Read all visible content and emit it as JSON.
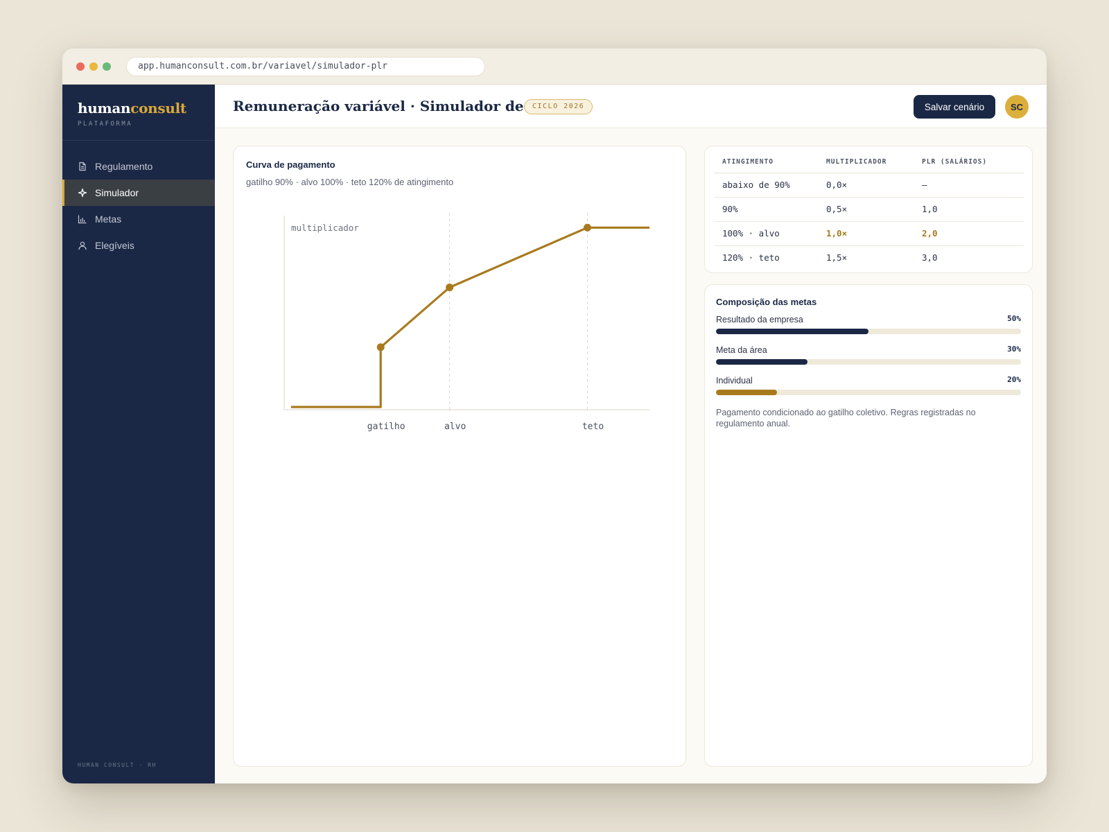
{
  "browser": {
    "url": "app.humanconsult.com.br/variavel/simulador-plr"
  },
  "brand": {
    "name_main": "human",
    "name_accent": "consult",
    "subtitle": "PLATAFORMA"
  },
  "sidebar": {
    "items": [
      {
        "label": "Regulamento",
        "icon": "document-icon",
        "active": false
      },
      {
        "label": "Simulador",
        "icon": "sparkle-icon",
        "active": true
      },
      {
        "label": "Metas",
        "icon": "bar-chart-icon",
        "active": false
      },
      {
        "label": "Elegíveis",
        "icon": "user-icon",
        "active": false
      }
    ],
    "footer": "HUMAN CONSULT · RH"
  },
  "header": {
    "title": "Remuneração variável · Simulador de PLR",
    "badge": "CICLO 2026",
    "save_label": "Salvar cenário",
    "avatar_initials": "SC"
  },
  "chart_card": {
    "title": "Curva de pagamento",
    "subtitle": "gatilho 90% · alvo 100% · teto 120% de atingimento"
  },
  "chart_data": {
    "type": "line",
    "ylabel": "multiplicador",
    "xlabel": "",
    "x_tick_labels": [
      {
        "x": 90,
        "label": "gatilho"
      },
      {
        "x": 100,
        "label": "alvo"
      },
      {
        "x": 120,
        "label": "teto"
      }
    ],
    "xlim": [
      76,
      129
    ],
    "ylim": [
      0,
      1.6
    ],
    "points": [
      {
        "x": 77,
        "y": 0
      },
      {
        "x": 90,
        "y": 0
      },
      {
        "x": 90,
        "y": 0.5
      },
      {
        "x": 100,
        "y": 1.0
      },
      {
        "x": 120,
        "y": 1.5
      },
      {
        "x": 129,
        "y": 1.5
      }
    ],
    "markers": [
      {
        "x": 90,
        "y": 0.5
      },
      {
        "x": 100,
        "y": 1.0
      },
      {
        "x": 120,
        "y": 1.5
      }
    ],
    "guides_x": [
      100,
      120
    ],
    "color": "#a87a1e",
    "grid": false
  },
  "table": {
    "headers": [
      "ATINGIMENTO",
      "MULTIPLICADOR",
      "PLR (SALÁRIOS)"
    ],
    "rows": [
      {
        "cells": [
          "abaixo de 90%",
          "0,0×",
          "—"
        ],
        "highlight": false
      },
      {
        "cells": [
          "90%",
          "0,5×",
          "1,0"
        ],
        "highlight": false
      },
      {
        "cells": [
          "100% · alvo",
          "1,0×",
          "2,0"
        ],
        "highlight": true
      },
      {
        "cells": [
          "120% · teto",
          "1,5×",
          "3,0"
        ],
        "highlight": false
      }
    ]
  },
  "goals": {
    "title": "Composição das metas",
    "items": [
      {
        "label": "Resultado da empresa",
        "pct_label": "50%",
        "value": 50,
        "color": "#1b2845"
      },
      {
        "label": "Meta da área",
        "pct_label": "30%",
        "value": 30,
        "color": "#1b2845"
      },
      {
        "label": "Individual",
        "pct_label": "20%",
        "value": 20,
        "color": "#a87a1e"
      }
    ],
    "note": "Pagamento condicionado ao gatilho coletivo. Regras registradas no regulamento anual."
  }
}
